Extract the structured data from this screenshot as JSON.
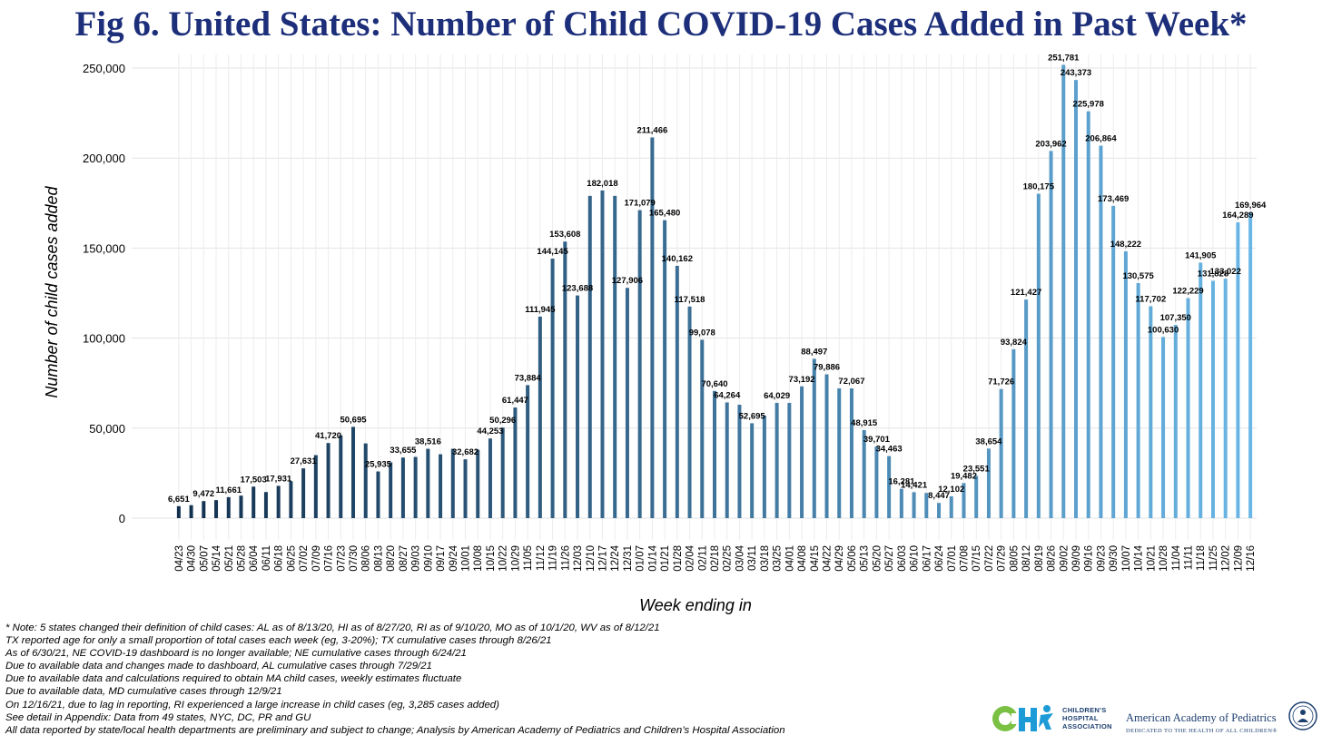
{
  "title": "Fig 6. United States: Number of Child COVID-19 Cases Added in Past Week*",
  "notes": [
    "* Note: 5 states changed their definition of child cases: AL as of 8/13/20, HI as of 8/27/20, RI as of 9/10/20, MO as of 10/1/20, WV as of 8/12/21",
    "TX reported age for only a small proportion of total cases each week (eg, 3-20%); TX cumulative cases through 8/26/21",
    "As of 6/30/21, NE COVID-19 dashboard is no longer available; NE cumulative cases through 6/24/21",
    "Due to available data and changes made to dashboard, AL cumulative cases through 7/29/21",
    "Due to available data and calculations required to obtain MA child cases, weekly estimates fluctuate",
    "Due to available data, MD cumulative cases through 12/9/21",
    "On 12/16/21, due to lag in reporting, RI experienced a large increase in child cases (eg, 3,285 cases added)",
    "See detail in Appendix: Data from 49 states, NYC, DC, PR and GU",
    "All data reported by state/local health departments are preliminary and subject to change; Analysis by American Academy of Pediatrics and Children’s Hospital Association"
  ],
  "logos": {
    "cha_text": [
      "CHILDREN'S",
      "HOSPITAL",
      "ASSOCIATION"
    ],
    "aap_name": "American Academy of Pediatrics",
    "aap_tagline": "DEDICATED TO THE HEALTH OF ALL CHILDREN®"
  },
  "chart_data": {
    "type": "bar",
    "xlabel": "Week ending in",
    "ylabel": "Number of child cases added",
    "ylim": [
      0,
      250000
    ],
    "yticks": [
      0,
      50000,
      100000,
      150000,
      200000,
      250000
    ],
    "ytick_labels": [
      "0",
      "50,000",
      "100,000",
      "150,000",
      "200,000",
      "250,000"
    ],
    "grid": true,
    "color_start": "#12304e",
    "color_end": "#6ab6e6",
    "categories": [
      "04/23",
      "04/30",
      "05/07",
      "05/14",
      "05/21",
      "05/28",
      "06/04",
      "06/11",
      "06/18",
      "06/25",
      "07/02",
      "07/09",
      "07/16",
      "07/23",
      "07/30",
      "08/06",
      "08/13",
      "08/20",
      "08/27",
      "09/03",
      "09/10",
      "09/17",
      "09/24",
      "10/01",
      "10/08",
      "10/15",
      "10/22",
      "10/29",
      "11/05",
      "11/12",
      "11/19",
      "11/26",
      "12/03",
      "12/10",
      "12/17",
      "12/24",
      "12/31",
      "01/07",
      "01/14",
      "01/21",
      "01/28",
      "02/04",
      "02/11",
      "02/18",
      "02/25",
      "03/04",
      "03/11",
      "03/18",
      "03/25",
      "04/01",
      "04/08",
      "04/15",
      "04/22",
      "04/29",
      "05/06",
      "05/13",
      "05/20",
      "05/27",
      "06/03",
      "06/10",
      "06/17",
      "06/24",
      "07/01",
      "07/08",
      "07/15",
      "07/22",
      "07/29",
      "08/05",
      "08/12",
      "08/19",
      "08/26",
      "09/02",
      "09/09",
      "09/16",
      "09/23",
      "09/30",
      "10/07",
      "10/14",
      "10/21",
      "10/28",
      "11/04",
      "11/11",
      "11/18",
      "11/25",
      "12/02",
      "12/09",
      "12/16"
    ],
    "values": [
      6651,
      7200,
      9472,
      10000,
      11661,
      12500,
      17503,
      14500,
      17931,
      20500,
      27631,
      35000,
      41720,
      46000,
      50695,
      41500,
      25935,
      31000,
      33655,
      34000,
      38516,
      35500,
      38516,
      32682,
      38000,
      44253,
      50296,
      61447,
      73884,
      111945,
      144145,
      153608,
      123688,
      179000,
      182018,
      179000,
      127906,
      171079,
      211466,
      165480,
      140162,
      117518,
      99078,
      70640,
      64264,
      63000,
      52695,
      57000,
      64029,
      64000,
      73192,
      88497,
      79886,
      72067,
      72067,
      48915,
      39701,
      34463,
      16281,
      14421,
      14000,
      8447,
      12102,
      19482,
      23551,
      38654,
      71726,
      93824,
      121427,
      180175,
      203962,
      251781,
      243373,
      225978,
      206864,
      173469,
      148222,
      130575,
      117702,
      100630,
      107350,
      122229,
      141905,
      131828,
      133022,
      164289,
      169964
    ],
    "data_labels": [
      {
        "index": 0,
        "text": "6,651"
      },
      {
        "index": 2,
        "text": "9,472"
      },
      {
        "index": 4,
        "text": "11,661"
      },
      {
        "index": 6,
        "text": "17,503"
      },
      {
        "index": 8,
        "text": "17,931"
      },
      {
        "index": 10,
        "text": "27,631"
      },
      {
        "index": 12,
        "text": "41,720"
      },
      {
        "index": 14,
        "text": "50,695"
      },
      {
        "index": 16,
        "text": "25,935"
      },
      {
        "index": 18,
        "text": "33,655"
      },
      {
        "index": 20,
        "text": "38,516"
      },
      {
        "index": 23,
        "text": "32,682"
      },
      {
        "index": 25,
        "text": "44,253"
      },
      {
        "index": 26,
        "text": "50,296"
      },
      {
        "index": 27,
        "text": "61,447"
      },
      {
        "index": 28,
        "text": "73,884"
      },
      {
        "index": 29,
        "text": "111,945"
      },
      {
        "index": 30,
        "text": "144,145"
      },
      {
        "index": 31,
        "text": "153,608"
      },
      {
        "index": 32,
        "text": "123,688"
      },
      {
        "index": 34,
        "text": "182,018"
      },
      {
        "index": 36,
        "text": "127,906"
      },
      {
        "index": 37,
        "text": "171,079"
      },
      {
        "index": 38,
        "text": "211,466"
      },
      {
        "index": 39,
        "text": "165,480"
      },
      {
        "index": 40,
        "text": "140,162"
      },
      {
        "index": 41,
        "text": "117,518"
      },
      {
        "index": 42,
        "text": "99,078"
      },
      {
        "index": 43,
        "text": "70,640"
      },
      {
        "index": 44,
        "text": "64,264"
      },
      {
        "index": 46,
        "text": "52,695"
      },
      {
        "index": 48,
        "text": "64,029"
      },
      {
        "index": 50,
        "text": "73,192"
      },
      {
        "index": 51,
        "text": "88,497"
      },
      {
        "index": 52,
        "text": "79,886"
      },
      {
        "index": 54,
        "text": "72,067"
      },
      {
        "index": 55,
        "text": "48,915"
      },
      {
        "index": 56,
        "text": "39,701"
      },
      {
        "index": 57,
        "text": "34,463"
      },
      {
        "index": 58,
        "text": "16,281"
      },
      {
        "index": 59,
        "text": "14,421"
      },
      {
        "index": 61,
        "text": "8,447"
      },
      {
        "index": 62,
        "text": "12,102"
      },
      {
        "index": 63,
        "text": "19,482"
      },
      {
        "index": 64,
        "text": "23,551"
      },
      {
        "index": 65,
        "text": "38,654"
      },
      {
        "index": 66,
        "text": "71,726"
      },
      {
        "index": 67,
        "text": "93,824"
      },
      {
        "index": 68,
        "text": "121,427"
      },
      {
        "index": 69,
        "text": "180,175"
      },
      {
        "index": 70,
        "text": "203,962"
      },
      {
        "index": 71,
        "text": "251,781"
      },
      {
        "index": 72,
        "text": "243,373"
      },
      {
        "index": 73,
        "text": "225,978"
      },
      {
        "index": 74,
        "text": "206,864"
      },
      {
        "index": 75,
        "text": "173,469"
      },
      {
        "index": 76,
        "text": "148,222"
      },
      {
        "index": 77,
        "text": "130,575"
      },
      {
        "index": 78,
        "text": "117,702"
      },
      {
        "index": 79,
        "text": "100,630"
      },
      {
        "index": 80,
        "text": "107,350"
      },
      {
        "index": 81,
        "text": "122,229"
      },
      {
        "index": 82,
        "text": "141,905"
      },
      {
        "index": 83,
        "text": "131,828"
      },
      {
        "index": 84,
        "text": "133,022"
      },
      {
        "index": 85,
        "text": "164,289"
      },
      {
        "index": 86,
        "text": "169,964"
      }
    ]
  }
}
